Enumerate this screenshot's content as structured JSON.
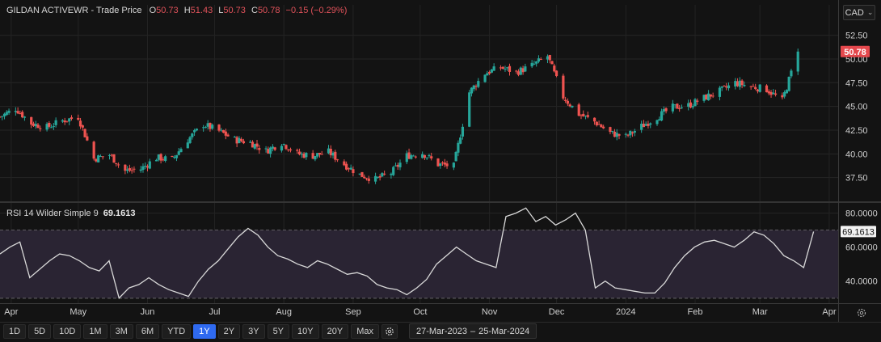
{
  "header": {
    "symbol": "GILDAN ACTIVEWR",
    "separator": " - ",
    "price_type": "Trade Price",
    "open_label": "O",
    "open": "50.73",
    "high_label": "H",
    "high": "51.43",
    "low_label": "L",
    "low": "50.73",
    "close_label": "C",
    "close": "50.78",
    "change": "−0.15 (−0.29%)"
  },
  "currency": {
    "value": "CAD",
    "icon": "chevron-down-icon"
  },
  "rsi": {
    "label": "RSI 14 Wilder Simple 9",
    "value": "69.1613"
  },
  "toolbar": {
    "ranges": [
      "1D",
      "5D",
      "10D",
      "1M",
      "3M",
      "6M",
      "YTD",
      "1Y",
      "2Y",
      "3Y",
      "5Y",
      "10Y",
      "20Y",
      "Max"
    ],
    "active": "1Y",
    "settings_icon": "gear-icon"
  },
  "date_range": {
    "start": "27-Mar-2023",
    "sep": "–",
    "end": "25-Mar-2024",
    "icon": "calendar-icon"
  },
  "colors": {
    "up": "#26a69a",
    "down": "#ef5350",
    "rsi_line": "#d9d9d9",
    "rsi_band": "#2a2433",
    "last_price_bg": "#e5484d",
    "active_button": "#2f6af0"
  },
  "chart_data": [
    {
      "type": "candlestick",
      "title": "GILDAN ACTIVEWR - Trade Price",
      "ylim": [
        35,
        54
      ],
      "y_ticks": [
        37.5,
        40,
        42.5,
        45,
        47.5,
        50,
        52.5
      ],
      "y_tick_labels": [
        "37.50",
        "40.00",
        "42.50",
        "45.00",
        "47.50",
        "50.00",
        "52.50"
      ],
      "last_price": 50.78,
      "last_price_label": "50.78",
      "x_tick_labels": [
        "Apr",
        "May",
        "Jun",
        "Jul",
        "Aug",
        "Sep",
        "Oct",
        "Nov",
        "Dec",
        "2024",
        "Feb",
        "Mar",
        "Apr"
      ],
      "x_ticks": [
        "2023-04-01",
        "2023-05-01",
        "2023-06-01",
        "2023-07-01",
        "2023-08-01",
        "2023-09-01",
        "2023-10-01",
        "2023-11-01",
        "2023-12-01",
        "2024-01-01",
        "2024-02-01",
        "2024-03-01",
        "2024-04-01"
      ],
      "x_range": [
        "2023-03-27",
        "2024-04-05"
      ],
      "weekly_close_series": {
        "start": "2023-03-27",
        "interval_days": 7,
        "values": [
          43.9,
          44.8,
          43.2,
          42.8,
          43.5,
          43.9,
          39.5,
          39.9,
          38.2,
          38.4,
          39.6,
          39.4,
          41.5,
          43.1,
          42.4,
          41.5,
          41.2,
          40.3,
          41.2,
          40.0,
          39.8,
          40.2,
          38.9,
          37.8,
          37.3,
          38.0,
          39.8,
          40.1,
          38.9,
          38.7,
          46.5,
          48.5,
          49.1,
          48.6,
          49.3,
          50.3,
          46.0,
          44.2,
          43.4,
          42.2,
          41.8,
          42.9,
          43.9,
          44.9,
          45.1,
          45.9,
          46.6,
          47.5,
          47.1,
          46.8,
          45.6,
          50.78
        ]
      }
    },
    {
      "type": "line",
      "title": "RSI 14 Wilder Simple 9",
      "ylim": [
        27,
        86
      ],
      "y_ticks": [
        40,
        60,
        80
      ],
      "y_tick_labels": [
        "40.0000",
        "60.0000",
        "80.0000"
      ],
      "overbought": 70,
      "oversold": 30,
      "last_value": 69.1613,
      "last_value_label": "69.1613",
      "series": [
        {
          "values": [
            56,
            60,
            63,
            42,
            47,
            52,
            56,
            55,
            52,
            48,
            46,
            52,
            30,
            36,
            38,
            42,
            38,
            35,
            33,
            31,
            40,
            47,
            52,
            59,
            66,
            71,
            67,
            60,
            55,
            53,
            50,
            48,
            52,
            50,
            47,
            44,
            45,
            43,
            38,
            36,
            35,
            32,
            36,
            41,
            50,
            55,
            60,
            56,
            52,
            50,
            48,
            78,
            80,
            83,
            75,
            78,
            73,
            76,
            80,
            70,
            36,
            40,
            36,
            35,
            34,
            33,
            33,
            39,
            48,
            55,
            60,
            63,
            64,
            62,
            60,
            64,
            69,
            67,
            62,
            55,
            52,
            48,
            69.16
          ]
        }
      ]
    }
  ]
}
